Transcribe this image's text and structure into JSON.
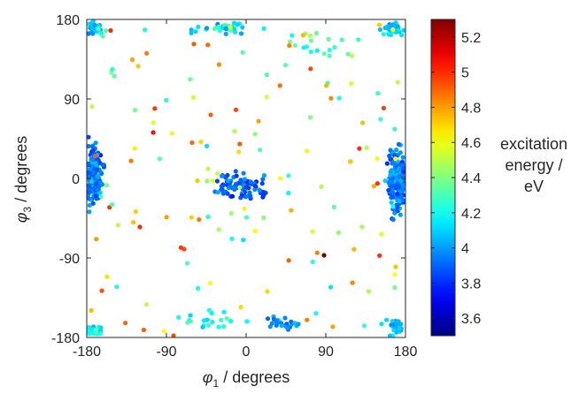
{
  "chart_data": {
    "type": "scatter",
    "title": "",
    "xlabel_symbol": "φ",
    "xlabel_sub": "1",
    "xlabel_rest": " / degrees",
    "ylabel_symbol": "φ",
    "ylabel_sub": "3",
    "ylabel_rest": " / degrees",
    "xlim": [
      -180,
      180
    ],
    "ylim": [
      -180,
      180
    ],
    "xticks": [
      -180,
      -90,
      0,
      90,
      180
    ],
    "yticks": [
      -180,
      -90,
      0,
      90,
      180
    ],
    "xtick_labels": [
      "-180",
      "-90",
      "0",
      "90",
      "180"
    ],
    "ytick_labels": [
      "-180",
      "-90",
      "0",
      "90",
      "180"
    ],
    "grid": false,
    "colormap": "jet",
    "colorbar": {
      "range": [
        3.5,
        5.3
      ],
      "ticks": [
        3.6,
        3.8,
        4,
        4.2,
        4.4,
        4.6,
        4.8,
        5,
        5.2
      ],
      "tick_labels": [
        "3.6",
        "3.8",
        "4",
        "4.2",
        "4.4",
        "4.6",
        "4.8",
        "5",
        "5.2"
      ],
      "label_lines": [
        "excitation",
        "energy /",
        "eV"
      ]
    },
    "points_description": "Approximately 1000 conformer points; dense clusters near phi1=±175, phi3≈0 (low energy ~3.7-4.1 eV), bands near phi3=±170 (edges), central cluster around phi1≈-30..40, phi3≈-20..10 (~3.8-4.1 eV), sparse higher-energy points (4.4-5.1 eV) around, one outlier at (88,-87) ≈5.3 eV.",
    "series": [
      {
        "x": [
          -175,
          -170,
          -165,
          -178,
          -160,
          -172,
          -168,
          -176,
          -163,
          -158,
          -174,
          -166,
          -171,
          -177,
          -162,
          -169,
          -173,
          -161,
          -167,
          -175,
          -164,
          -170,
          -178,
          -159,
          -172,
          -165,
          -176,
          -168,
          -163,
          -171,
          175,
          170,
          165,
          178,
          160,
          172,
          168,
          176,
          163,
          158,
          174,
          166,
          171,
          177,
          162,
          169,
          173,
          161,
          167,
          175,
          164,
          170,
          178,
          159,
          172,
          165,
          176,
          168,
          163,
          171,
          -20,
          -10,
          0,
          10,
          20,
          30,
          -30,
          -25,
          -15,
          -5,
          5,
          15,
          25,
          35,
          -35,
          -12,
          8,
          18,
          28,
          -22,
          -170,
          -160,
          -150,
          -140,
          150,
          160,
          170,
          -175,
          175,
          -40,
          -20,
          0,
          30,
          50,
          -60,
          60,
          -165,
          -155,
          165,
          155,
          -175,
          175,
          -168,
          168,
          -120,
          -100,
          -80,
          -60,
          -40,
          -20,
          20,
          40,
          60,
          80,
          100,
          120,
          -110,
          -90,
          -50,
          50,
          90,
          110,
          -130,
          -75,
          -55,
          -45,
          -25,
          5,
          45,
          65,
          75,
          105,
          130,
          -85,
          -65,
          85,
          88
        ]
      }
    ]
  }
}
